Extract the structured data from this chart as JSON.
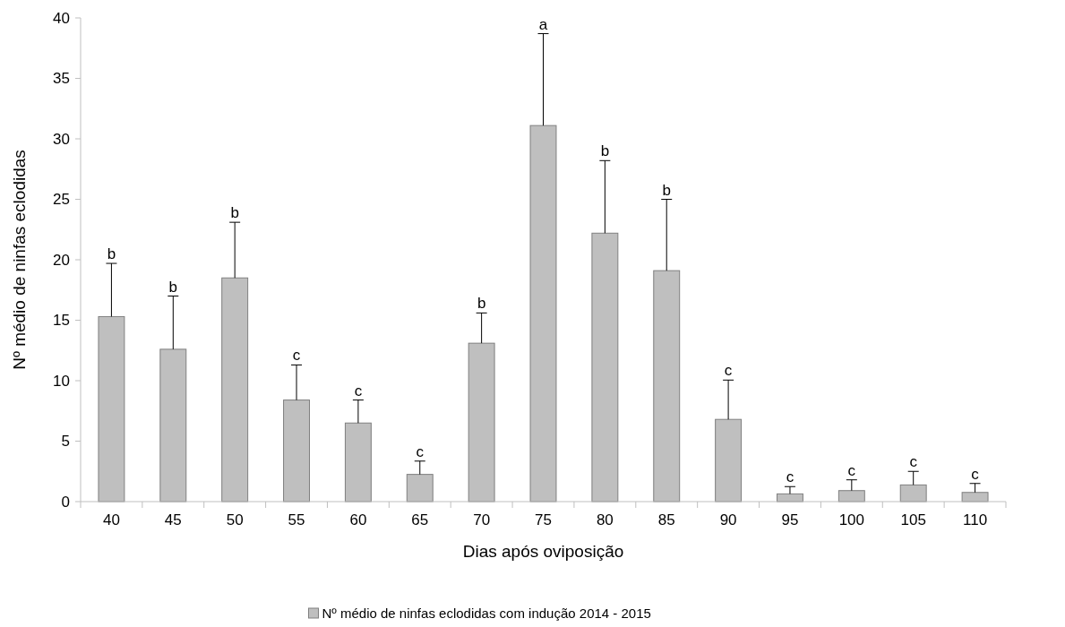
{
  "chart_data": {
    "type": "bar",
    "xlabel": "Dias após oviposição",
    "ylabel": "Nº médio de ninfas eclodidas",
    "categories": [
      "40",
      "45",
      "50",
      "55",
      "60",
      "65",
      "70",
      "75",
      "80",
      "85",
      "90",
      "95",
      "100",
      "105",
      "110"
    ],
    "series": [
      {
        "name": "Nº médio de ninfas eclodidas com indução 2014 - 2015",
        "color": "#bfbfbf",
        "values": [
          15.3,
          12.6,
          18.5,
          8.4,
          6.5,
          2.25,
          13.1,
          31.1,
          22.2,
          19.1,
          6.8,
          0.64,
          0.91,
          1.38,
          0.76
        ],
        "errors": [
          [
            15.3,
            19.7
          ],
          [
            12.6,
            17.0
          ],
          [
            18.5,
            23.1
          ],
          [
            8.4,
            11.3
          ],
          [
            6.5,
            8.4
          ],
          [
            2.25,
            3.35
          ],
          [
            13.1,
            15.6
          ],
          [
            31.1,
            38.7
          ],
          [
            22.2,
            28.2
          ],
          [
            19.1,
            25.0
          ],
          [
            6.8,
            10.05
          ],
          [
            0.64,
            1.24
          ],
          [
            0.91,
            1.8
          ],
          [
            1.38,
            2.5
          ],
          [
            0.76,
            1.5
          ]
        ]
      }
    ],
    "annotations": [
      {
        "text": "b",
        "x": "40",
        "y": 19.7
      },
      {
        "text": "b",
        "x": "45",
        "y": 17.0
      },
      {
        "text": "b",
        "x": "50",
        "y": 23.1
      },
      {
        "text": "c",
        "x": "55",
        "y": 11.3
      },
      {
        "text": "c",
        "x": "60",
        "y": 8.4
      },
      {
        "text": "c",
        "x": "65",
        "y": 3.35
      },
      {
        "text": "b",
        "x": "70",
        "y": 15.6
      },
      {
        "text": "a",
        "x": "75",
        "y": 38.7
      },
      {
        "text": "b",
        "x": "80",
        "y": 28.2
      },
      {
        "text": "b",
        "x": "85",
        "y": 25.0
      },
      {
        "text": "c",
        "x": "90",
        "y": 10.05
      },
      {
        "text": "c",
        "x": "95",
        "y": 1.24
      },
      {
        "text": "c",
        "x": "100",
        "y": 1.8
      },
      {
        "text": "c",
        "x": "105",
        "y": 2.5
      },
      {
        "text": "c",
        "x": "110",
        "y": 1.5
      }
    ],
    "ylim": [
      0,
      40
    ],
    "yticks": [
      0,
      5,
      10,
      15,
      20,
      25,
      30,
      35,
      40
    ],
    "grid": false,
    "legend": "bottom"
  }
}
